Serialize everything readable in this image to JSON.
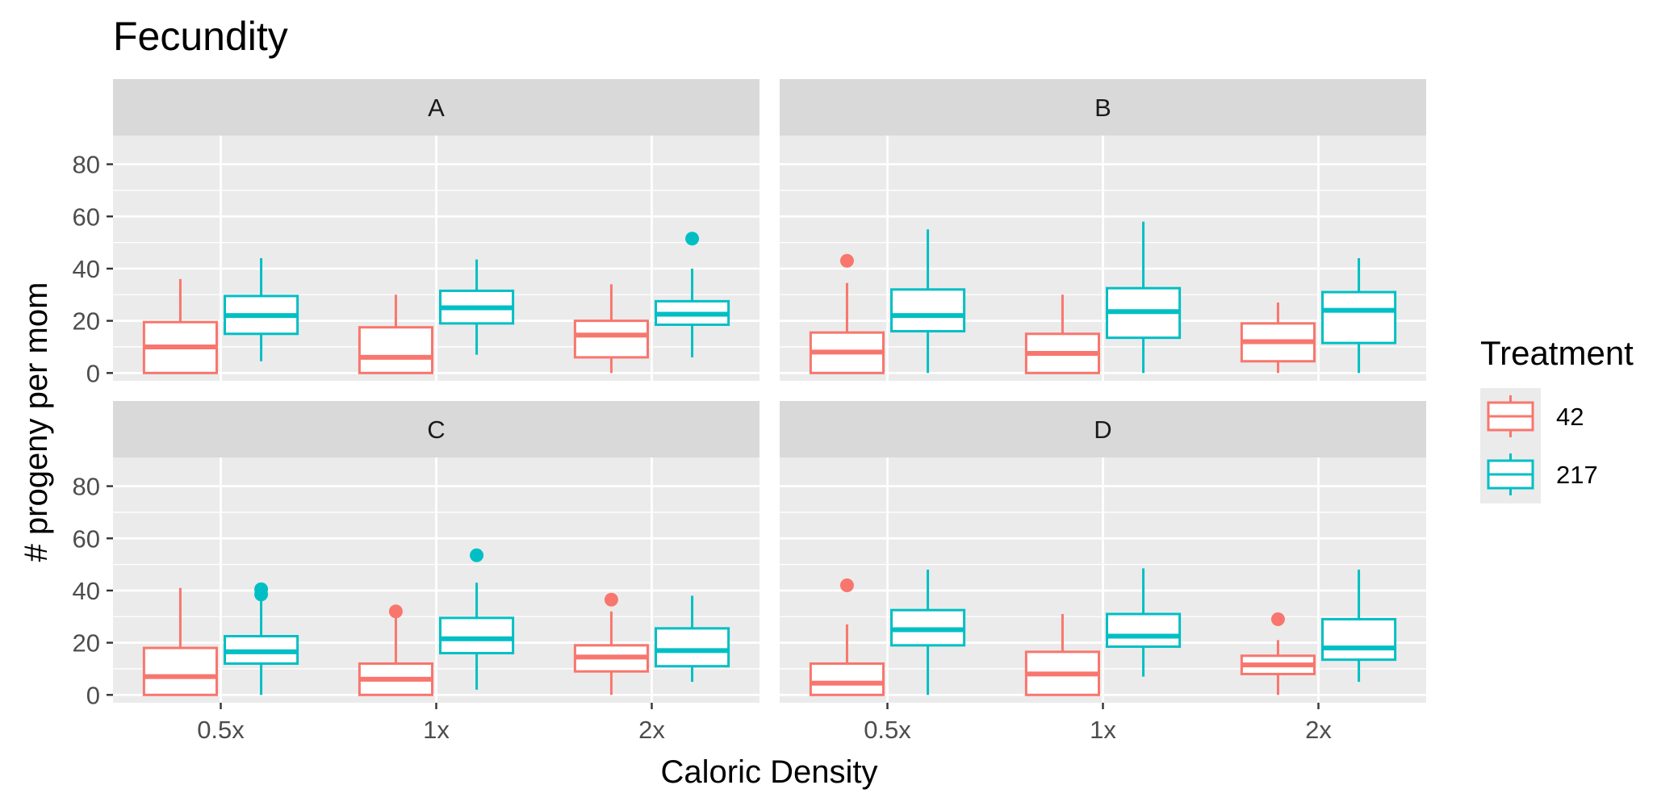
{
  "chart_data": {
    "type": "boxplot",
    "title": "Fecundity",
    "xlabel": "Caloric Density",
    "ylabel": "# progeny per mom",
    "categories": [
      "0.5x",
      "1x",
      "2x"
    ],
    "yticks": [
      0,
      20,
      40,
      60,
      80
    ],
    "ylim": [
      -3,
      91
    ],
    "grid": true,
    "legend": {
      "title": "Treatment",
      "position": "right",
      "entries": [
        {
          "label": "42",
          "color": "#F8766D"
        },
        {
          "label": "217",
          "color": "#00BFC4"
        }
      ]
    },
    "facets": [
      {
        "label": "A",
        "groups": [
          {
            "category": "0.5x",
            "series": "42",
            "min": 0,
            "q1": 0,
            "median": 10,
            "q3": 19.5,
            "max": 36,
            "outliers": []
          },
          {
            "category": "0.5x",
            "series": "217",
            "min": 4.5,
            "q1": 15,
            "median": 22,
            "q3": 29.5,
            "max": 44,
            "outliers": []
          },
          {
            "category": "1x",
            "series": "42",
            "min": 0,
            "q1": 0,
            "median": 6,
            "q3": 17.5,
            "max": 30,
            "outliers": []
          },
          {
            "category": "1x",
            "series": "217",
            "min": 7,
            "q1": 19,
            "median": 25,
            "q3": 31.5,
            "max": 43.5,
            "outliers": []
          },
          {
            "category": "2x",
            "series": "42",
            "min": 0,
            "q1": 6,
            "median": 14.5,
            "q3": 20,
            "max": 34,
            "outliers": []
          },
          {
            "category": "2x",
            "series": "217",
            "min": 6,
            "q1": 18.5,
            "median": 22.5,
            "q3": 27.5,
            "max": 40,
            "outliers": [
              51.5
            ]
          }
        ]
      },
      {
        "label": "B",
        "groups": [
          {
            "category": "0.5x",
            "series": "42",
            "min": 0,
            "q1": 0,
            "median": 8,
            "q3": 15.5,
            "max": 34.5,
            "outliers": [
              43
            ]
          },
          {
            "category": "0.5x",
            "series": "217",
            "min": 0,
            "q1": 16,
            "median": 22,
            "q3": 32,
            "max": 55,
            "outliers": []
          },
          {
            "category": "1x",
            "series": "42",
            "min": 0,
            "q1": 0,
            "median": 7.5,
            "q3": 15,
            "max": 30,
            "outliers": []
          },
          {
            "category": "1x",
            "series": "217",
            "min": 0,
            "q1": 13.5,
            "median": 23.5,
            "q3": 32.5,
            "max": 58,
            "outliers": []
          },
          {
            "category": "2x",
            "series": "42",
            "min": 0,
            "q1": 4.5,
            "median": 12,
            "q3": 19,
            "max": 27,
            "outliers": []
          },
          {
            "category": "2x",
            "series": "217",
            "min": 0,
            "q1": 11.5,
            "median": 24,
            "q3": 31,
            "max": 44,
            "outliers": []
          }
        ]
      },
      {
        "label": "C",
        "groups": [
          {
            "category": "0.5x",
            "series": "42",
            "min": 0,
            "q1": 0,
            "median": 7,
            "q3": 18,
            "max": 41,
            "outliers": []
          },
          {
            "category": "0.5x",
            "series": "217",
            "min": 0,
            "q1": 12,
            "median": 16.5,
            "q3": 22.5,
            "max": 38,
            "outliers": [
              38.5,
              40.5
            ]
          },
          {
            "category": "1x",
            "series": "42",
            "min": 0,
            "q1": 0,
            "median": 6,
            "q3": 12,
            "max": 30,
            "outliers": [
              32
            ]
          },
          {
            "category": "1x",
            "series": "217",
            "min": 2,
            "q1": 16,
            "median": 21.5,
            "q3": 29.5,
            "max": 43,
            "outliers": [
              53.5
            ]
          },
          {
            "category": "2x",
            "series": "42",
            "min": 0,
            "q1": 9,
            "median": 14.5,
            "q3": 19,
            "max": 32,
            "outliers": [
              36.5
            ]
          },
          {
            "category": "2x",
            "series": "217",
            "min": 5,
            "q1": 11,
            "median": 17,
            "q3": 25.5,
            "max": 38,
            "outliers": []
          }
        ]
      },
      {
        "label": "D",
        "groups": [
          {
            "category": "0.5x",
            "series": "42",
            "min": 0,
            "q1": 0,
            "median": 4.5,
            "q3": 12,
            "max": 27,
            "outliers": [
              42
            ]
          },
          {
            "category": "0.5x",
            "series": "217",
            "min": 0,
            "q1": 19,
            "median": 25,
            "q3": 32.5,
            "max": 48,
            "outliers": []
          },
          {
            "category": "1x",
            "series": "42",
            "min": 0,
            "q1": 0,
            "median": 8,
            "q3": 16.5,
            "max": 31,
            "outliers": []
          },
          {
            "category": "1x",
            "series": "217",
            "min": 7,
            "q1": 18.5,
            "median": 22.5,
            "q3": 31,
            "max": 48.5,
            "outliers": []
          },
          {
            "category": "2x",
            "series": "42",
            "min": 0,
            "q1": 8,
            "median": 11.5,
            "q3": 15,
            "max": 21,
            "outliers": [
              29
            ]
          },
          {
            "category": "2x",
            "series": "217",
            "min": 5,
            "q1": 13.5,
            "median": 18,
            "q3": 29,
            "max": 48,
            "outliers": []
          }
        ]
      }
    ]
  }
}
